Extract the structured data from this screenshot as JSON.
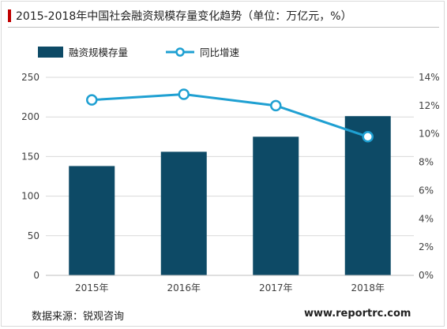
{
  "title": "2015-2018年中国社会融资规模存量变化趋势（单位：万亿元，%）",
  "footer": {
    "source": "数据来源：锐观咨询",
    "website": "www.reportrc.com"
  },
  "colors": {
    "bar": "#0d4a66",
    "line": "#1fa0d2",
    "accent": "#c00000"
  },
  "chart_data": {
    "type": "bar",
    "categories": [
      "2015年",
      "2016年",
      "2017年",
      "2018年"
    ],
    "series": [
      {
        "name": "融资规模存量",
        "type": "bar",
        "axis": "left",
        "values": [
          138,
          156,
          175,
          201
        ]
      },
      {
        "name": "同比增速",
        "type": "line",
        "axis": "right",
        "values": [
          12.4,
          12.8,
          12.0,
          9.8
        ]
      }
    ],
    "y_left": {
      "min": 0,
      "max": 250,
      "ticks": [
        "0",
        "50",
        "100",
        "150",
        "200",
        "250"
      ]
    },
    "y_right": {
      "min": 0,
      "max": 14,
      "ticks": [
        "0%",
        "2%",
        "4%",
        "6%",
        "8%",
        "10%",
        "12%",
        "14%"
      ]
    },
    "legend_position": "top-left",
    "grid": true
  }
}
